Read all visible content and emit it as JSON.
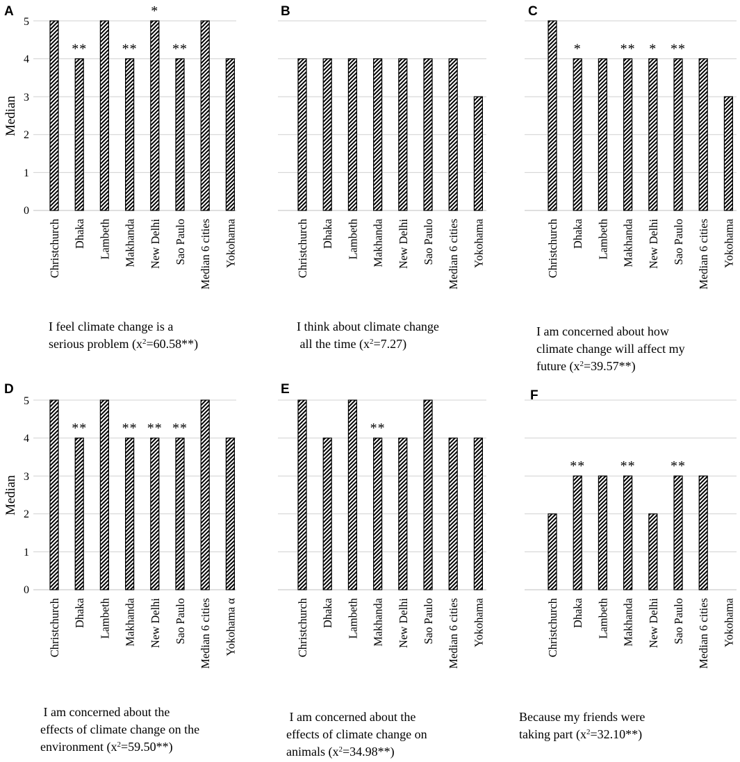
{
  "figure": {
    "y_axis_label": "Median",
    "y_ticks": [
      "0",
      "1",
      "2",
      "3",
      "4",
      "5"
    ]
  },
  "chart_data": [
    {
      "type": "bar",
      "panel": "A",
      "categories": [
        "Christchurch",
        "Dhaka",
        "Lambeth",
        "Makhanda",
        "New Delhi",
        "Sao Paulo",
        "Median 6 cities",
        "Yokohama"
      ],
      "values": [
        5,
        4,
        5,
        4,
        5,
        4,
        5,
        4
      ],
      "significance": [
        "",
        "**",
        "",
        "**",
        "*",
        "**",
        "",
        ""
      ],
      "ylabel": "Median",
      "ylim": [
        0,
        5
      ],
      "caption_line1": "I feel climate change is a",
      "caption_line2_pre": "serious problem (x",
      "caption_sup": "2",
      "caption_line2_post": "=60.58**)"
    },
    {
      "type": "bar",
      "panel": "B",
      "categories": [
        "Christchurch",
        "Dhaka",
        "Lambeth",
        "Makhanda",
        "New Delhi",
        "Sao Paulo",
        "Median 6 cities",
        "Yokohama"
      ],
      "values": [
        4,
        4,
        4,
        4,
        4,
        4,
        4,
        3
      ],
      "significance": [
        "",
        "",
        "",
        "",
        "",
        "",
        "",
        ""
      ],
      "ylim": [
        0,
        5
      ],
      "caption_line1": "I think about climate change",
      "caption_line2_pre": " all the time (x",
      "caption_sup": "2",
      "caption_line2_post": "=7.27)"
    },
    {
      "type": "bar",
      "panel": "C",
      "categories": [
        "Christchurch",
        "Dhaka",
        "Lambeth",
        "Makhanda",
        "New Delhi",
        "Sao Paulo",
        "Median 6 cities",
        "Yokohama"
      ],
      "values": [
        5,
        4,
        4,
        4,
        4,
        4,
        4,
        3
      ],
      "significance": [
        "",
        "*",
        "",
        "**",
        "*",
        "**",
        "",
        ""
      ],
      "ylim": [
        0,
        5
      ],
      "caption_line1": "I am concerned about how",
      "caption_line2": "climate change will affect my",
      "caption_line3_pre": "future (x",
      "caption_sup": "2",
      "caption_line3_post": "=39.57**)"
    },
    {
      "type": "bar",
      "panel": "D",
      "categories": [
        "Christchurch",
        "Dhaka",
        "Lambeth",
        "Makhanda",
        "New Delhi",
        "Sao Paulo",
        "Median 6 cities",
        "Yokohama α"
      ],
      "values": [
        5,
        4,
        5,
        4,
        4,
        4,
        5,
        4
      ],
      "significance": [
        "",
        "**",
        "",
        "**",
        "**",
        "**",
        "",
        ""
      ],
      "ylabel": "Median",
      "ylim": [
        0,
        5
      ],
      "caption_line1": " I am concerned about the",
      "caption_line2": "effects of climate change on the",
      "caption_line3_pre": "environment (x",
      "caption_sup": "2",
      "caption_line3_post": "=59.50**)"
    },
    {
      "type": "bar",
      "panel": "E",
      "categories": [
        "Christchurch",
        "Dhaka",
        "Lambeth",
        "Makhanda",
        "New Delhi",
        "Sao Paulo",
        "Median 6 cities",
        "Yokohama"
      ],
      "values": [
        5,
        4,
        5,
        4,
        4,
        5,
        4,
        4
      ],
      "significance": [
        "",
        "",
        "",
        "**",
        "",
        "",
        "",
        ""
      ],
      "ylim": [
        0,
        5
      ],
      "caption_line1": " I am concerned about the",
      "caption_line2": "effects of climate change on",
      "caption_line3_pre": "animals (x",
      "caption_sup": "2",
      "caption_line3_post": "=34.98**)"
    },
    {
      "type": "bar",
      "panel": "F",
      "categories": [
        "Christchurch",
        "Dhaka",
        "Lambeth",
        "Makhanda",
        "New Delhi",
        "Sao Paulo",
        "Median 6 cities",
        "Yokohama"
      ],
      "values": [
        2,
        3,
        3,
        3,
        2,
        3,
        3,
        null
      ],
      "significance": [
        "",
        "**",
        "",
        "**",
        "",
        "**",
        "",
        ""
      ],
      "ylim": [
        0,
        5
      ],
      "caption_line1": "Because my friends were",
      "caption_line2_pre": "taking part (x",
      "caption_sup": "2",
      "caption_line2_post": "=32.10**)"
    }
  ]
}
